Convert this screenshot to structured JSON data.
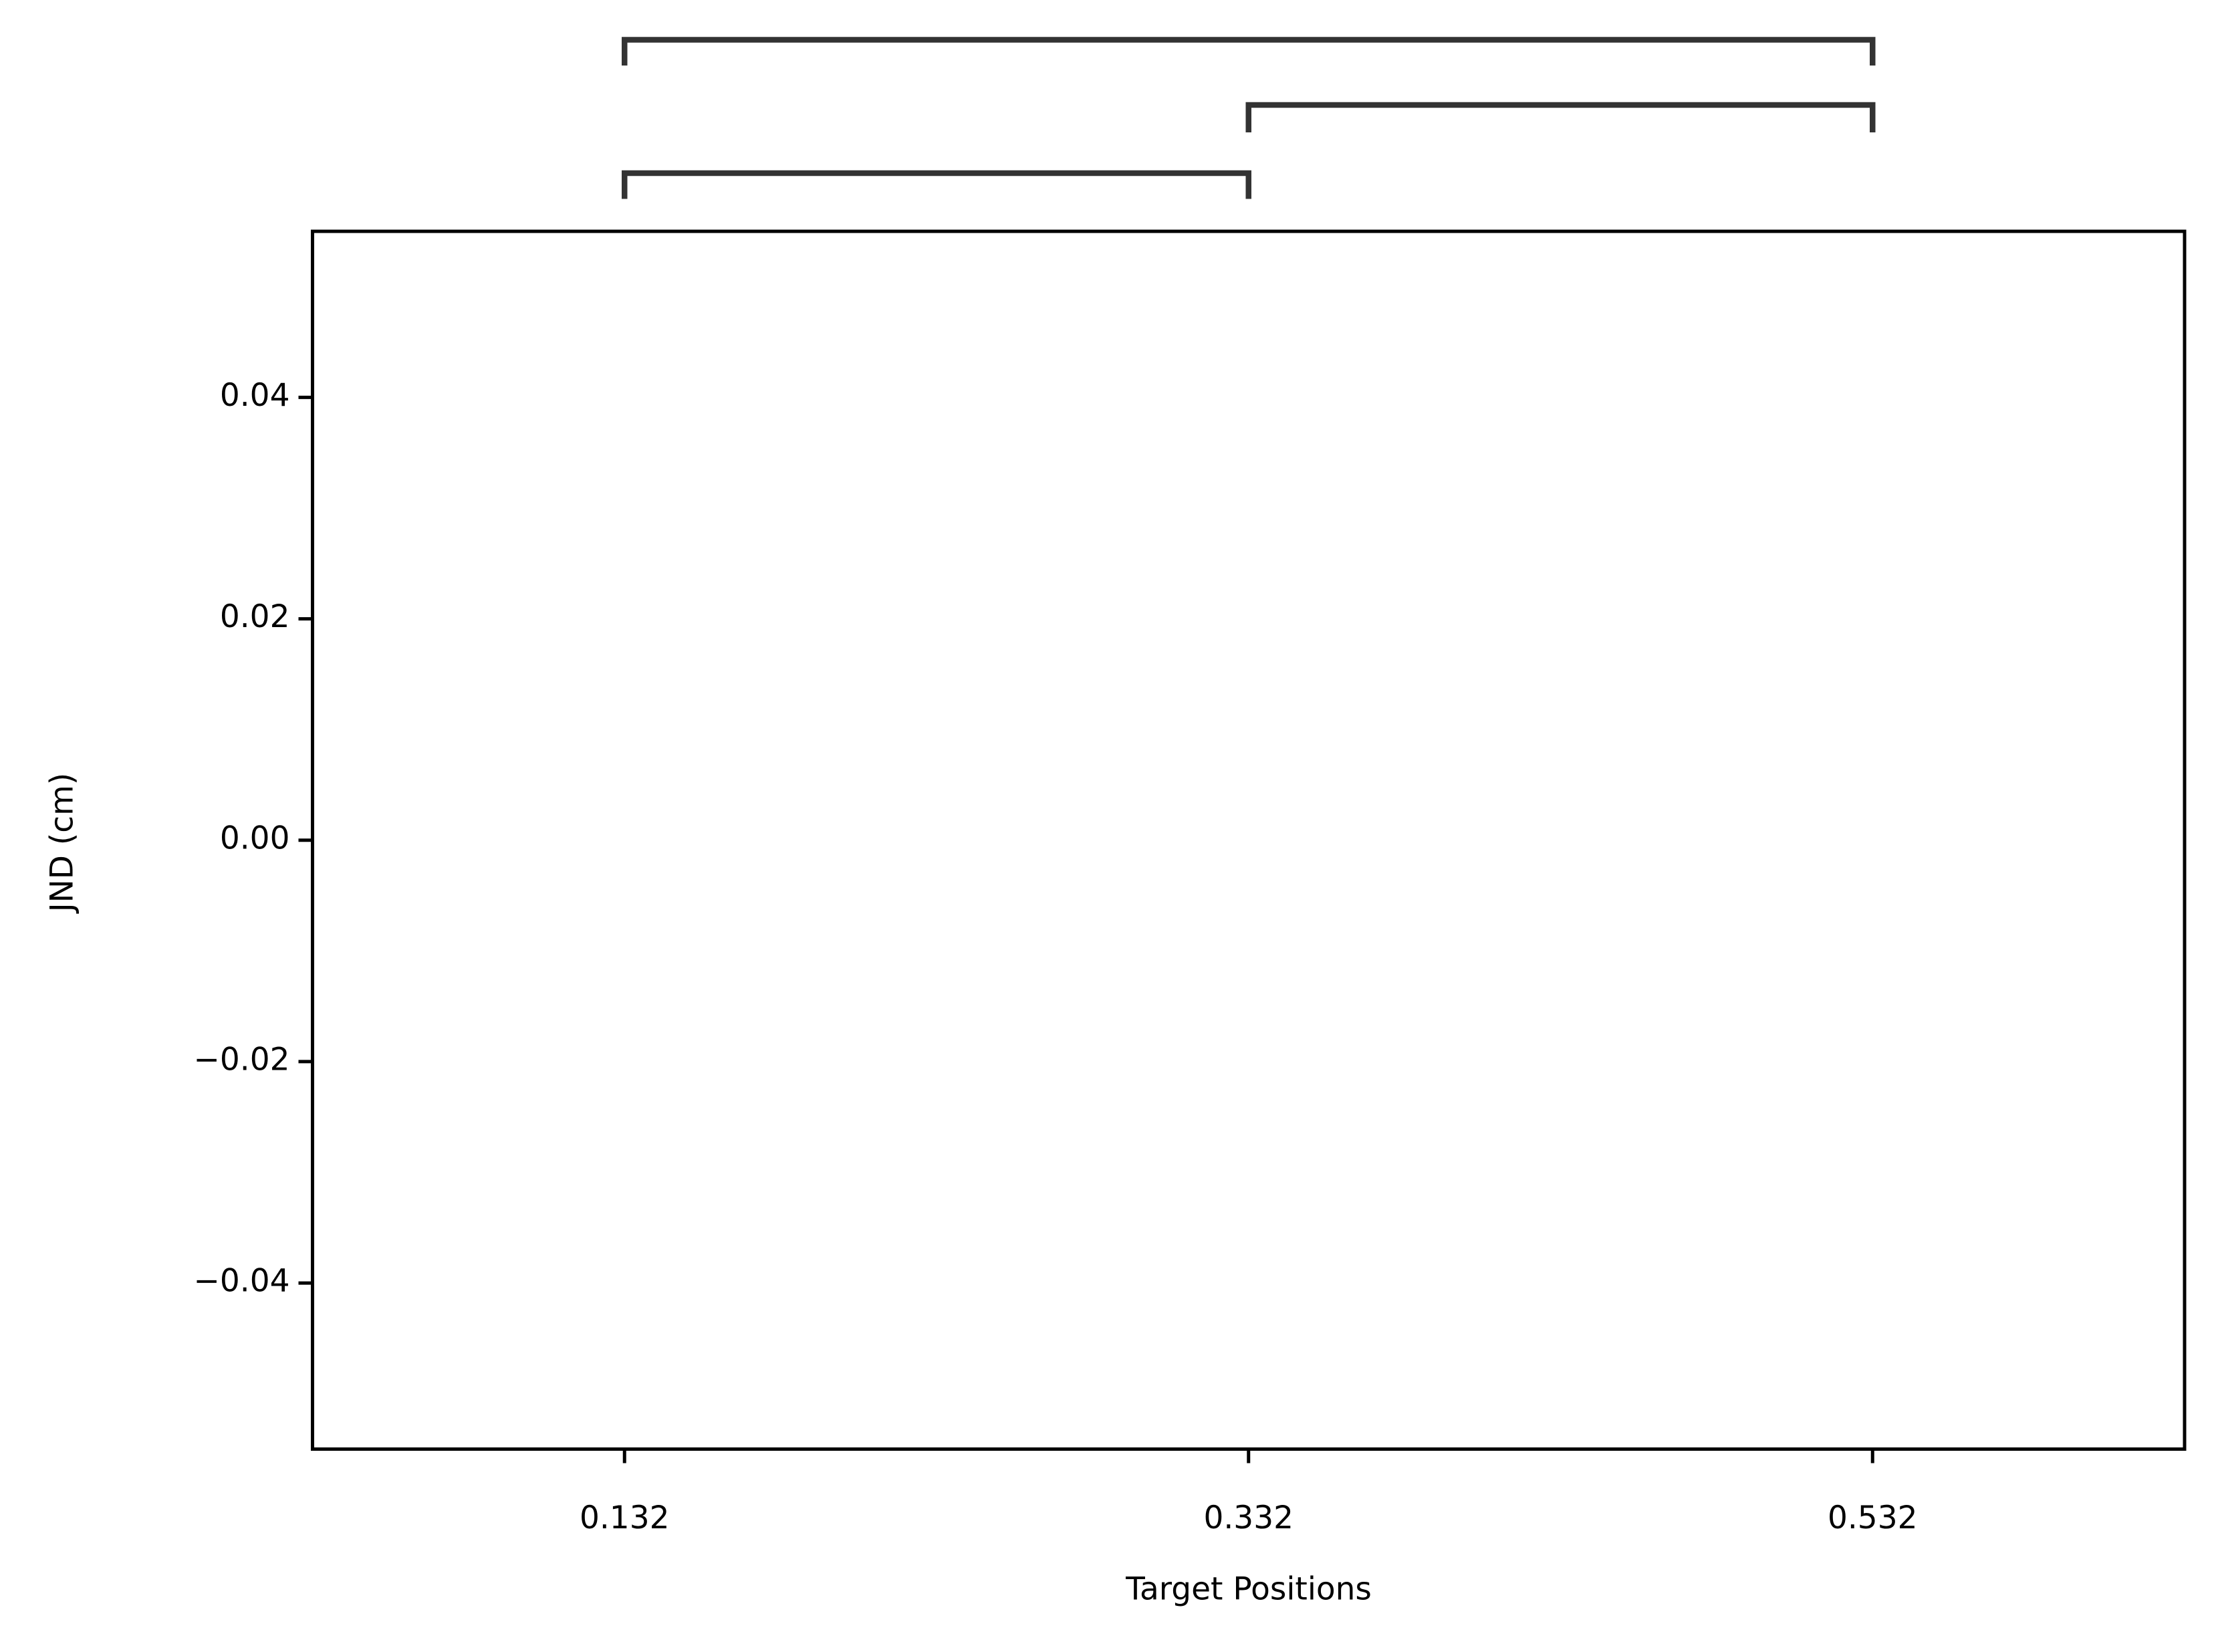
{
  "chart_data": {
    "type": "bar",
    "categories": [
      "0.132",
      "0.332",
      "0.532"
    ],
    "xlabel": "Target Positions",
    "ylabel": "JND (cm)",
    "ylim": [
      -0.055,
      0.055
    ],
    "yticks": [
      {
        "value": -0.04,
        "label": "−0.04"
      },
      {
        "value": -0.02,
        "label": "−0.02"
      },
      {
        "value": 0,
        "label": "0.00"
      },
      0.02,
      0.04
    ]
  }
}
